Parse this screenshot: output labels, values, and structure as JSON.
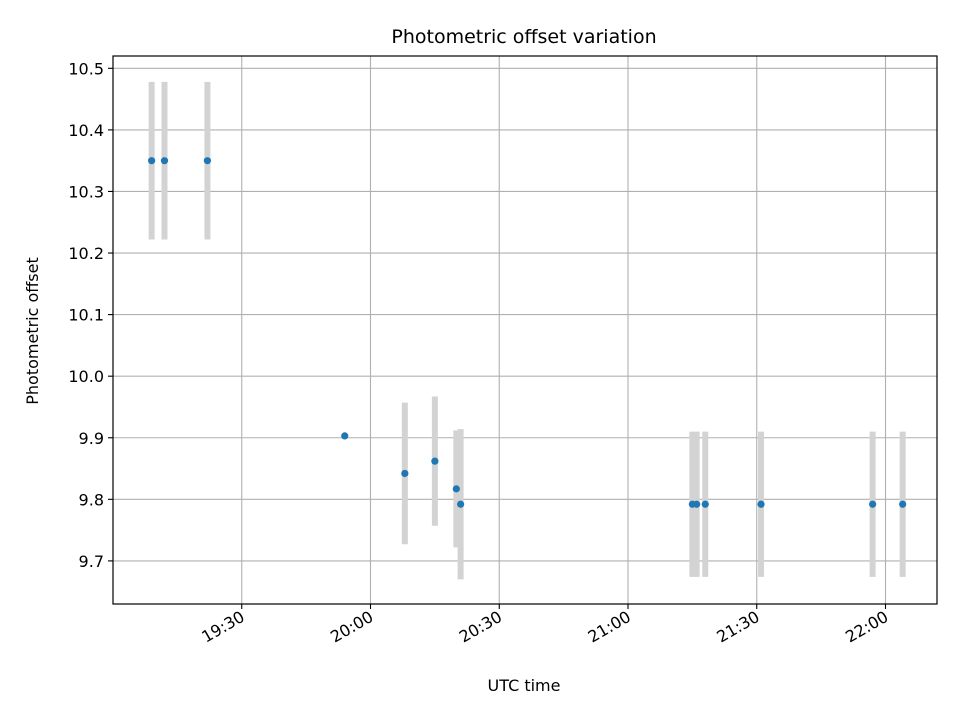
{
  "chart_data": {
    "type": "scatter",
    "title": "Photometric offset variation",
    "xlabel": "UTC time",
    "ylabel": "Photometric offset",
    "x_unit": "time",
    "xlim": [
      "19:00",
      "22:12"
    ],
    "ylim": [
      9.63,
      10.52
    ],
    "x_ticks": [
      "19:30",
      "20:00",
      "20:30",
      "21:00",
      "21:30",
      "22:00"
    ],
    "y_ticks": [
      "9.7",
      "9.8",
      "9.9",
      "10.0",
      "10.1",
      "10.2",
      "10.3",
      "10.4",
      "10.5"
    ],
    "grid": true,
    "marker_color": "#1f77b4",
    "errorbar_color": "#d3d3d3",
    "points": [
      {
        "x": "19:09",
        "y": 10.35,
        "err": 0.128
      },
      {
        "x": "19:12",
        "y": 10.35,
        "err": 0.128
      },
      {
        "x": "19:22",
        "y": 10.35,
        "err": 0.128
      },
      {
        "x": "19:54",
        "y": 9.903,
        "err": 0.0
      },
      {
        "x": "20:08",
        "y": 9.842,
        "err": 0.115
      },
      {
        "x": "20:15",
        "y": 9.862,
        "err": 0.105
      },
      {
        "x": "20:20",
        "y": 9.817,
        "err": 0.095
      },
      {
        "x": "20:21",
        "y": 9.792,
        "err": 0.122
      },
      {
        "x": "21:15",
        "y": 9.792,
        "err": 0.118
      },
      {
        "x": "21:16",
        "y": 9.792,
        "err": 0.118
      },
      {
        "x": "21:18",
        "y": 9.792,
        "err": 0.118
      },
      {
        "x": "21:31",
        "y": 9.792,
        "err": 0.118
      },
      {
        "x": "21:57",
        "y": 9.792,
        "err": 0.118
      },
      {
        "x": "22:04",
        "y": 9.792,
        "err": 0.118
      }
    ]
  }
}
